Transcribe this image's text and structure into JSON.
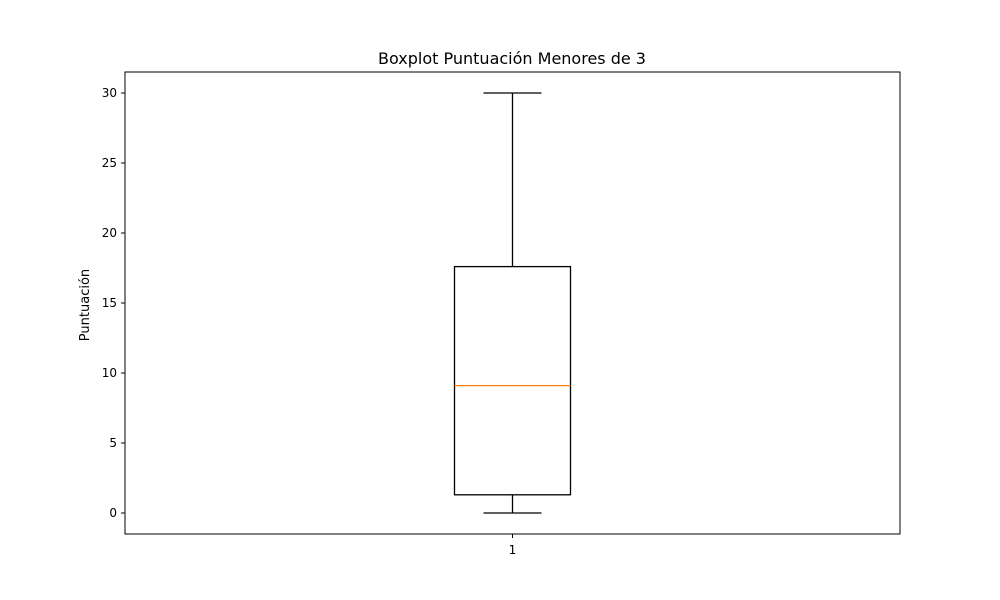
{
  "chart_data": {
    "type": "boxplot",
    "title": "Boxplot Puntuación Menores de 3",
    "xlabel": "",
    "ylabel": "Puntuación",
    "categories": [
      "1"
    ],
    "boxes": [
      {
        "category": "1",
        "whisker_low": 0,
        "q1": 1.3,
        "median": 9.1,
        "q3": 17.6,
        "whisker_high": 30
      }
    ],
    "yticks": [
      0,
      5,
      10,
      15,
      20,
      25,
      30
    ],
    "ylim": [
      -1.5,
      31.5
    ],
    "grid": false,
    "colors": {
      "box": "#000000",
      "median": "#ff7f0e",
      "axes": "#000000"
    }
  }
}
